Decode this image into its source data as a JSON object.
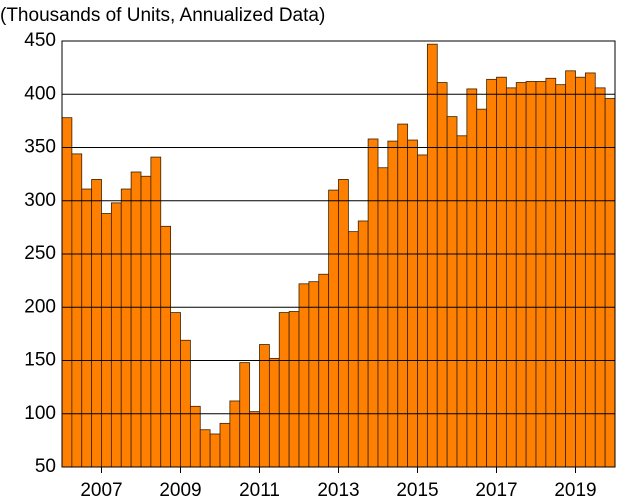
{
  "chart_data": {
    "type": "bar",
    "title": "(Thousands of Units, Annualized Data)",
    "x": [
      2006,
      2006.25,
      2006.5,
      2006.75,
      2007,
      2007.25,
      2007.5,
      2007.75,
      2008,
      2008.25,
      2008.5,
      2008.75,
      2009,
      2009.25,
      2009.5,
      2009.75,
      2010,
      2010.25,
      2010.5,
      2010.75,
      2011,
      2011.25,
      2011.5,
      2011.75,
      2012,
      2012.25,
      2012.5,
      2012.75,
      2013,
      2013.25,
      2013.5,
      2013.75,
      2014,
      2014.25,
      2014.5,
      2014.75,
      2015,
      2015.25,
      2015.5,
      2015.75,
      2016,
      2016.25,
      2016.5,
      2016.75,
      2017,
      2017.25,
      2017.5,
      2017.75,
      2018,
      2018.25,
      2018.5,
      2018.75,
      2019,
      2019.25,
      2019.5,
      2019.75
    ],
    "values": [
      378,
      344,
      311,
      320,
      288,
      298,
      311,
      327,
      323,
      341,
      276,
      195,
      169,
      107,
      85,
      81,
      91,
      112,
      148,
      102,
      165,
      152,
      195,
      196,
      222,
      224,
      231,
      310,
      320,
      271,
      281,
      358,
      331,
      356,
      372,
      357,
      343,
      447,
      411,
      379,
      361,
      405,
      386,
      414,
      416,
      406,
      411,
      412,
      412,
      415,
      409,
      422,
      416,
      420,
      406,
      396
    ],
    "color": "#ff8000",
    "xlim": [
      2006,
      2020
    ],
    "xticks": [
      2007,
      2009,
      2011,
      2013,
      2015,
      2017,
      2019
    ],
    "ylim": [
      50,
      450
    ],
    "yticks": [
      50,
      100,
      150,
      200,
      250,
      300,
      350,
      400,
      450
    ],
    "grid": true
  }
}
